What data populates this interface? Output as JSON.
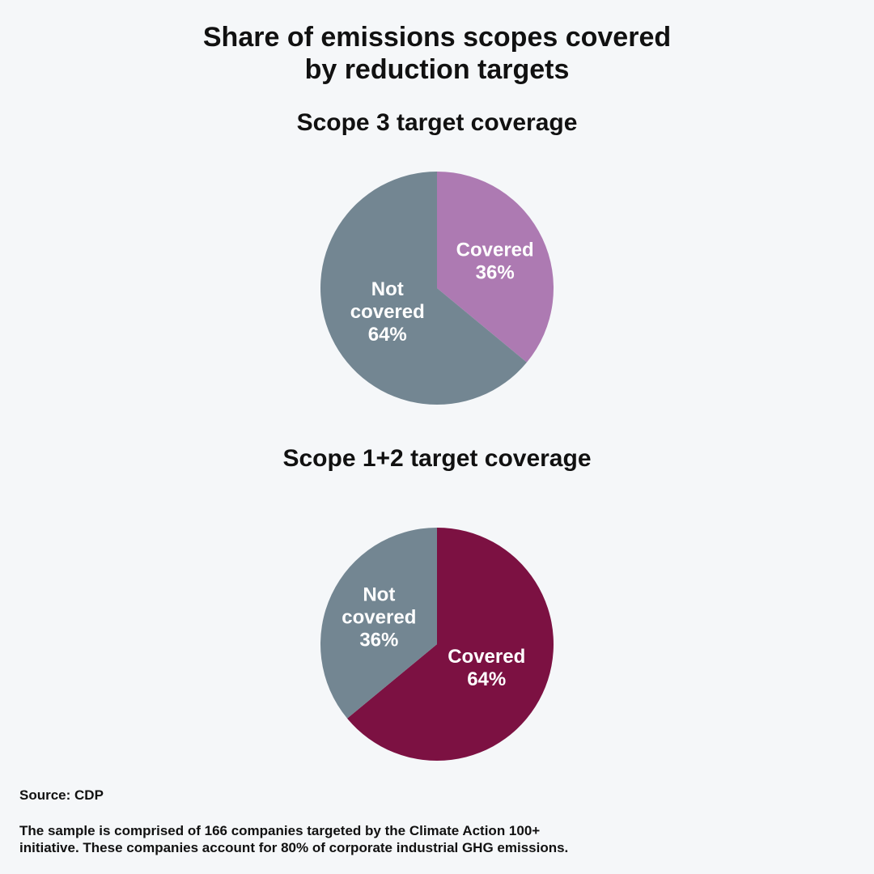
{
  "title_lines": [
    "Share of emissions scopes covered",
    "by reduction targets"
  ],
  "chart_data": [
    {
      "type": "pie",
      "title": "Scope 3 target coverage",
      "slices": [
        {
          "label_lines": [
            "Covered",
            "36%"
          ],
          "value": 36,
          "color": "#ad7ab2"
        },
        {
          "label_lines": [
            "Not",
            "covered",
            "64%"
          ],
          "value": 64,
          "color": "#738692"
        }
      ]
    },
    {
      "type": "pie",
      "title": "Scope 1+2 target coverage",
      "slices": [
        {
          "label_lines": [
            "Covered",
            "64%"
          ],
          "value": 64,
          "color": "#7c1142"
        },
        {
          "label_lines": [
            "Not",
            "covered",
            "36%"
          ],
          "value": 36,
          "color": "#738692"
        }
      ]
    }
  ],
  "source": "Source: CDP",
  "note_lines": [
    "The sample is comprised of 166 companies targeted by the Climate Action 100+",
    "initiative. These companies account for 80% of corporate industrial GHG emissions."
  ]
}
